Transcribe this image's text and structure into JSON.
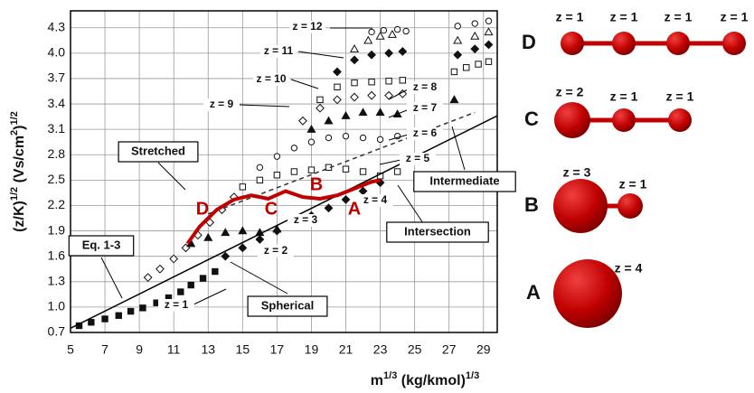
{
  "chart_data": {
    "type": "scatter",
    "ylabel": [
      "(z/K)",
      "1/2",
      " (Vs/cm",
      "2",
      ")",
      "1/2"
    ],
    "xlabel": [
      "m",
      "1/3",
      " (kg/kmol)",
      "1/3"
    ],
    "xlim": [
      5,
      29.8
    ],
    "ylim": [
      0.7,
      4.5
    ],
    "xticks": [
      5,
      7,
      9,
      11,
      13,
      15,
      17,
      19,
      21,
      23,
      25,
      27,
      29
    ],
    "yticks": [
      0.7,
      {
        "value": 1,
        "label": "1.0"
      },
      1.3,
      1.6,
      1.9,
      2.2,
      2.5,
      2.8,
      3.1,
      3.4,
      3.7,
      {
        "value": 4,
        "label": "4.0"
      },
      4.3
    ],
    "grid": true,
    "series": [
      {
        "marker": "square-filled",
        "color": "#111111",
        "x": [
          5.5,
          6.2,
          7,
          7.8,
          8.5,
          9.2,
          10,
          10.7,
          11.4,
          12,
          12.7,
          13.4
        ],
        "values": [
          0.78,
          0.82,
          0.86,
          0.9,
          0.95,
          0.99,
          1.05,
          1.11,
          1.18,
          1.26,
          1.34,
          1.42
        ]
      },
      {
        "marker": "diamond-filled",
        "color": "#111111",
        "x": [
          14,
          15,
          16,
          17,
          18,
          19,
          20,
          21,
          22,
          23
        ],
        "values": [
          1.6,
          1.7,
          1.8,
          1.9,
          2.0,
          2.08,
          2.17,
          2.27,
          2.37,
          2.47
        ]
      },
      {
        "marker": "diamond-open",
        "color": "#111111",
        "x": [
          9.5,
          10.2,
          11,
          11.7,
          12.4,
          13.1,
          13.8,
          14.5
        ],
        "values": [
          1.35,
          1.45,
          1.57,
          1.7,
          1.85,
          2.0,
          2.15,
          2.3
        ]
      },
      {
        "marker": "triangle-filled",
        "color": "#111111",
        "x": [
          12,
          13,
          14,
          15,
          16,
          17
        ],
        "values": [
          1.75,
          1.82,
          1.88,
          1.9,
          1.88,
          1.92
        ]
      },
      {
        "marker": "square-open",
        "color": "#111111",
        "x": [
          15,
          16,
          17,
          18,
          19,
          20,
          21,
          22,
          23,
          24
        ],
        "values": [
          2.42,
          2.5,
          2.56,
          2.6,
          2.62,
          2.65,
          2.63,
          2.6,
          2.55,
          2.6
        ]
      },
      {
        "marker": "circle-open",
        "color": "#111111",
        "x": [
          16,
          17,
          18,
          19,
          20,
          21,
          22,
          23,
          24
        ],
        "values": [
          2.65,
          2.78,
          2.88,
          2.95,
          3.0,
          3.02,
          3.0,
          2.98,
          3.02
        ]
      },
      {
        "marker": "triangle-filled",
        "color": "#111111",
        "x": [
          19,
          20,
          21,
          22,
          23,
          24
        ],
        "values": [
          3.1,
          3.2,
          3.26,
          3.3,
          3.3,
          3.28
        ]
      },
      {
        "marker": "diamond-open",
        "color": "#111111",
        "x": [
          18.5,
          19.5,
          20.5,
          21.5,
          22.5,
          23.5,
          24.3
        ],
        "values": [
          3.2,
          3.35,
          3.45,
          3.48,
          3.5,
          3.5,
          3.52
        ]
      },
      {
        "marker": "square-open",
        "color": "#111111",
        "x": [
          19.5,
          20.5,
          21.5,
          22.5,
          23.5,
          24.3
        ],
        "values": [
          3.45,
          3.6,
          3.65,
          3.66,
          3.67,
          3.68
        ]
      },
      {
        "marker": "diamond-filled",
        "color": "#111111",
        "x": [
          20.5,
          21.5,
          22.5,
          23.5,
          24.3,
          27.5,
          28.5,
          29.3
        ],
        "values": [
          3.78,
          3.92,
          3.98,
          4.0,
          4.02,
          3.98,
          4.05,
          4.1
        ]
      },
      {
        "marker": "triangle-open",
        "color": "#111111",
        "x": [
          21.5,
          22.3,
          23,
          23.7,
          27.5,
          28.5,
          29.3
        ],
        "values": [
          4.05,
          4.15,
          4.2,
          4.22,
          4.15,
          4.2,
          4.25
        ]
      },
      {
        "marker": "circle-open",
        "color": "#111111",
        "x": [
          22.5,
          23.2,
          24,
          24.5,
          27.5,
          28.5,
          29.3
        ],
        "values": [
          4.25,
          4.27,
          4.28,
          4.26,
          4.32,
          4.35,
          4.38
        ]
      },
      {
        "marker": "square-open",
        "color": "#111111",
        "x": [
          27.3,
          28,
          28.7,
          29.3
        ],
        "values": [
          3.78,
          3.83,
          3.87,
          3.9
        ]
      },
      {
        "marker": "triangle-filled",
        "color": "#111111",
        "x": [
          27.3
        ],
        "values": [
          3.45
        ]
      },
      {
        "marker": "line-solid",
        "color": "#000000",
        "x": [
          5,
          29.8
        ],
        "values": [
          0.75,
          3.26
        ]
      },
      {
        "marker": "line-dashed",
        "color": "#333333",
        "x": [
          13,
          28.5
        ],
        "values": [
          2.1,
          3.3
        ]
      },
      {
        "marker": "line-thick",
        "color": "#c00000",
        "x": [
          11.8,
          12.5,
          13.5,
          14.5,
          15.5,
          16.5,
          17.5,
          18.5,
          19.5,
          20.5,
          21.5,
          22.5,
          23
        ],
        "values": [
          1.75,
          1.95,
          2.15,
          2.27,
          2.32,
          2.28,
          2.37,
          2.3,
          2.28,
          2.32,
          2.4,
          2.48,
          2.5
        ]
      }
    ],
    "annotations": [
      "z = 12",
      "z = 11",
      "z = 10",
      "z = 9",
      "z = 8",
      "z = 7",
      "z = 6",
      "z = 5",
      "z = 4",
      "z = 3",
      "z = 2",
      "z = 1",
      "Stretched",
      "Spherical",
      "Eq. 1-3",
      "Intersection",
      "Intermediate",
      "D",
      "C",
      "B",
      "A"
    ]
  },
  "molecules": [
    {
      "label": "D",
      "charges": [
        "z = 1",
        "z = 1",
        "z = 1",
        "z = 1"
      ]
    },
    {
      "label": "C",
      "charges": [
        "z = 2",
        "z = 1",
        "z = 1"
      ]
    },
    {
      "label": "B",
      "charges": [
        "z = 3",
        "z = 1"
      ]
    },
    {
      "label": "A",
      "charges": [
        "z = 4"
      ]
    }
  ]
}
